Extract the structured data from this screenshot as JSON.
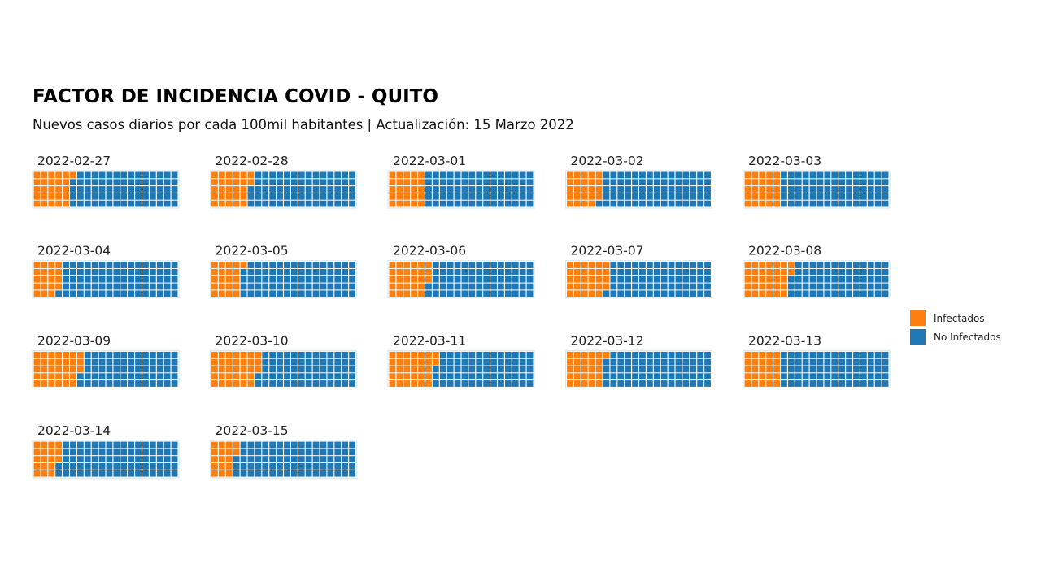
{
  "title": "FACTOR DE INCIDENCIA COVID - QUITO",
  "subtitle": "Nuevos casos diarios por cada 100mil habitantes | Actualización: 15 Marzo 2022",
  "colors": {
    "infected": "#ff7f0e",
    "not_infected": "#1f77b4",
    "panel_border": "#d6e6f2"
  },
  "chart_data": {
    "type": "waffle",
    "grid": {
      "rows": 5,
      "cols": 20,
      "total_cells": 100
    },
    "series": [
      {
        "name": "Infectados"
      },
      {
        "name": "No Infectados"
      }
    ],
    "legend_position": "right",
    "panels": [
      {
        "date": "2022-02-27",
        "infected": 26
      },
      {
        "date": "2022-02-28",
        "infected": 27
      },
      {
        "date": "2022-03-01",
        "infected": 25
      },
      {
        "date": "2022-03-02",
        "infected": 24
      },
      {
        "date": "2022-03-03",
        "infected": 25
      },
      {
        "date": "2022-03-04",
        "infected": 19
      },
      {
        "date": "2022-03-05",
        "infected": 21
      },
      {
        "date": "2022-03-06",
        "infected": 28
      },
      {
        "date": "2022-03-07",
        "infected": 29
      },
      {
        "date": "2022-03-08",
        "infected": 32
      },
      {
        "date": "2022-03-09",
        "infected": 33
      },
      {
        "date": "2022-03-10",
        "infected": 33
      },
      {
        "date": "2022-03-11",
        "infected": 32
      },
      {
        "date": "2022-03-12",
        "infected": 26
      },
      {
        "date": "2022-03-13",
        "infected": 25
      },
      {
        "date": "2022-03-14",
        "infected": 18
      },
      {
        "date": "2022-03-15",
        "infected": 17
      }
    ]
  }
}
